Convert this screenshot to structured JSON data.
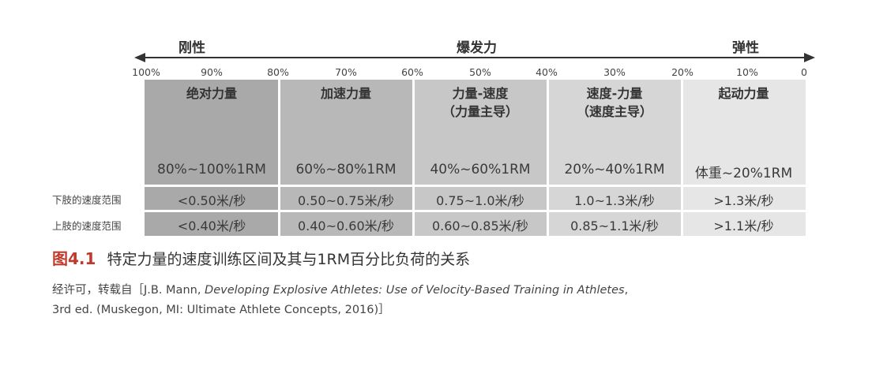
{
  "top_labels": {
    "rigid": "刚性",
    "explosive": "爆发力",
    "elastic": "弹性"
  },
  "percent_ticks": [
    "100%",
    "90%",
    "80%",
    "70%",
    "60%",
    "50%",
    "40%",
    "30%",
    "20%",
    "10%",
    "0"
  ],
  "zones": [
    {
      "title": "绝对力量",
      "subtitle": "",
      "load": "80%~100%1RM",
      "lower": "<0.50米/秒",
      "upper": "<0.40米/秒",
      "color": "#a9a9a9"
    },
    {
      "title": "加速力量",
      "subtitle": "",
      "load": "60%~80%1RM",
      "lower": "0.50~0.75米/秒",
      "upper": "0.40~0.60米/秒",
      "color": "#b8b8b8"
    },
    {
      "title": "力量-速度",
      "subtitle": "（力量主导）",
      "load": "40%~60%1RM",
      "lower": "0.75~1.0米/秒",
      "upper": "0.60~0.85米/秒",
      "color": "#c7c7c7"
    },
    {
      "title": "速度-力量",
      "subtitle": "（速度主导）",
      "load": "20%~40%1RM",
      "lower": "1.0~1.3米/秒",
      "upper": "0.85~1.1米/秒",
      "color": "#d6d6d6"
    },
    {
      "title": "起动力量",
      "subtitle": "",
      "load": "体重~20%1RM",
      "lower": ">1.3米/秒",
      "upper": ">1.1米/秒",
      "color": "#e6e6e6"
    }
  ],
  "row_labels": {
    "lower": "下肢的速度范围",
    "upper": "上肢的速度范围"
  },
  "caption": {
    "figure": "图4.1",
    "text": "特定力量的速度训练区间及其与1RM百分比负荷的关系"
  },
  "credit": {
    "prefix": "经许可，转载自［J.B. Mann, ",
    "title": "Developing Explosive Athletes: Use of Velocity-Based Training in Athletes",
    "suffix": ",",
    "line2": "3rd ed. (Muskegon, MI: Ultimate Athlete Concepts, 2016)］"
  }
}
